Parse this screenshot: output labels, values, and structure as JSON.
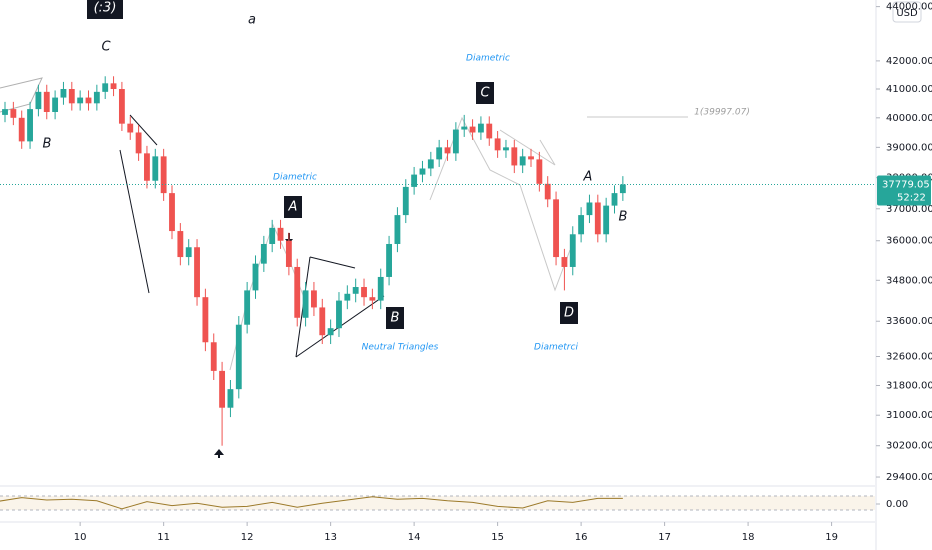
{
  "chart_data": {
    "type": "candlestick",
    "log_scale": true,
    "up_color": "#26a69a",
    "down_color": "#ef5350",
    "x": [
      9.1,
      9.2,
      9.3,
      9.4,
      9.5,
      9.6,
      9.7,
      9.8,
      9.9,
      10.0,
      10.1,
      10.2,
      10.3,
      10.4,
      10.5,
      10.6,
      10.7,
      10.8,
      10.9,
      11.0,
      11.1,
      11.2,
      11.3,
      11.4,
      11.5,
      11.6,
      11.7,
      11.8,
      11.9,
      12.0,
      12.1,
      12.2,
      12.3,
      12.4,
      12.5,
      12.6,
      12.7,
      12.8,
      12.9,
      13.0,
      13.1,
      13.2,
      13.3,
      13.4,
      13.5,
      13.6,
      13.7,
      13.8,
      13.9,
      14.0,
      14.1,
      14.2,
      14.3,
      14.4,
      14.5,
      14.6,
      14.7,
      14.8,
      14.9,
      15.0,
      15.1,
      15.2,
      15.3,
      15.4,
      15.5,
      15.6,
      15.7,
      15.8,
      15.9,
      16.0,
      16.1,
      16.2,
      16.3,
      16.4,
      16.5
    ],
    "open": [
      40100,
      40300,
      40000,
      39200,
      40300,
      40900,
      40200,
      40700,
      41000,
      40500,
      40700,
      40500,
      40900,
      41200,
      41000,
      39800,
      39500,
      38800,
      37900,
      38700,
      37500,
      36300,
      35500,
      35800,
      34300,
      33000,
      32200,
      31200,
      31700,
      33500,
      34500,
      35300,
      35900,
      36400,
      36000,
      35200,
      33700,
      34500,
      34000,
      33200,
      33400,
      34200,
      34400,
      34600,
      34300,
      34200,
      34900,
      35900,
      36800,
      37700,
      38100,
      38300,
      38600,
      39000,
      38800,
      39600,
      39700,
      39500,
      39800,
      39300,
      38900,
      39000,
      38400,
      38700,
      38600,
      37800,
      37300,
      35500,
      35200,
      36200,
      36800,
      37200,
      36200,
      37100,
      37500
    ],
    "high": [
      40550,
      40550,
      40250,
      40550,
      41150,
      41150,
      40950,
      41250,
      41250,
      40950,
      40950,
      41150,
      41450,
      41450,
      41250,
      40050,
      39750,
      39050,
      38950,
      38950,
      37750,
      36550,
      36050,
      36050,
      34550,
      33250,
      32450,
      31950,
      33750,
      34750,
      35550,
      36150,
      36650,
      36650,
      36250,
      35450,
      34750,
      34750,
      34250,
      33650,
      34450,
      34650,
      34850,
      34850,
      34550,
      35150,
      36150,
      37050,
      37950,
      38350,
      38550,
      38850,
      39250,
      39250,
      39850,
      40100,
      39950,
      40050,
      40050,
      39550,
      39250,
      39250,
      38950,
      38950,
      38850,
      38050,
      37550,
      35750,
      36450,
      37050,
      37450,
      37450,
      37350,
      37750,
      38050
    ],
    "low": [
      39850,
      39750,
      38950,
      38950,
      40050,
      39950,
      39950,
      40450,
      40250,
      40250,
      40250,
      40250,
      40650,
      40750,
      39550,
      39250,
      38550,
      37650,
      37650,
      37250,
      36050,
      35250,
      35250,
      34050,
      32750,
      31950,
      30200,
      30950,
      31450,
      33250,
      34250,
      35050,
      35650,
      35750,
      34950,
      33450,
      33450,
      33750,
      32950,
      32950,
      33150,
      33950,
      34150,
      34050,
      33950,
      33950,
      34650,
      35650,
      36550,
      37450,
      37850,
      38050,
      38350,
      38550,
      38550,
      39350,
      39250,
      39250,
      39050,
      38650,
      38650,
      38150,
      38150,
      38350,
      37550,
      37050,
      35250,
      34500,
      34950,
      35950,
      36550,
      35950,
      35950,
      36850,
      37250
    ],
    "close": [
      40300,
      40000,
      39200,
      40300,
      40900,
      40200,
      40700,
      41000,
      40500,
      40700,
      40500,
      40900,
      41200,
      41000,
      39800,
      39500,
      38800,
      37900,
      38700,
      37500,
      36300,
      35500,
      35800,
      34300,
      33000,
      32200,
      31200,
      31700,
      33500,
      34500,
      35300,
      35900,
      36400,
      36000,
      35200,
      33700,
      34500,
      34000,
      33200,
      33400,
      34200,
      34400,
      34600,
      34300,
      34200,
      34900,
      35900,
      36800,
      37700,
      38100,
      38300,
      38600,
      39000,
      38800,
      39600,
      39700,
      39500,
      39800,
      39300,
      38900,
      39000,
      38400,
      38700,
      38600,
      37800,
      37300,
      35500,
      35200,
      36200,
      36800,
      37200,
      36200,
      37100,
      37500,
      37779.05
    ],
    "xlim": [
      9.04,
      19.52
    ],
    "xticks": [
      10,
      11,
      12,
      13,
      14,
      15,
      16,
      17,
      18,
      19
    ],
    "ylim": [
      29200,
      44250
    ],
    "yticks": [
      {
        "value": 44000,
        "label": "44000.00"
      },
      {
        "value": 42000,
        "label": "42000.00"
      },
      {
        "value": 41000,
        "label": "41000.00"
      },
      {
        "value": 40000,
        "label": "40000.00"
      },
      {
        "value": 39000,
        "label": "39000.00"
      },
      {
        "value": 38000,
        "label": "38000.00"
      },
      {
        "value": 37000,
        "label": "37000.00"
      },
      {
        "value": 36000,
        "label": "36000.00"
      },
      {
        "value": 34800,
        "label": "34800.00"
      },
      {
        "value": 33600,
        "label": "33600.00"
      },
      {
        "value": 32600,
        "label": "32600.00"
      },
      {
        "value": 31800,
        "label": "31800.00"
      },
      {
        "value": 31000,
        "label": "31000.00"
      },
      {
        "value": 30200,
        "label": "30200.00"
      },
      {
        "value": 29400,
        "label": "29400.00"
      }
    ],
    "last_price": 37779.05,
    "countdown": "52:22",
    "currency": "USD",
    "annotations": [
      {
        "text": "(:3)",
        "boxed": true
      },
      {
        "text": "a",
        "boxed": false
      },
      {
        "text": "C",
        "boxed": false
      },
      {
        "text": "B",
        "boxed": false
      },
      {
        "text": "Diametric",
        "boxed": false,
        "color": "#2196f3"
      },
      {
        "text": "C",
        "boxed": true
      },
      {
        "text": "1(39997.07)",
        "boxed": false,
        "color": "#9e9e9e"
      },
      {
        "text": "Diametric",
        "boxed": false,
        "color": "#2196f3"
      },
      {
        "text": "A",
        "boxed": false
      },
      {
        "text": "A",
        "boxed": true
      },
      {
        "text": "B",
        "boxed": false
      },
      {
        "text": "B",
        "boxed": true
      },
      {
        "text": "D",
        "boxed": true
      },
      {
        "text": "Neutral Triangles",
        "boxed": false,
        "color": "#2196f3"
      },
      {
        "text": "Diametrci",
        "boxed": false,
        "color": "#2196f3"
      }
    ],
    "oscillator": {
      "type": "line",
      "color": "#9c7a2a",
      "x": [
        9.0,
        9.3,
        9.6,
        9.9,
        10.2,
        10.5,
        10.8,
        11.1,
        11.4,
        11.7,
        12.0,
        12.3,
        12.6,
        12.9,
        13.2,
        13.5,
        13.8,
        14.1,
        14.4,
        14.7,
        15.0,
        15.3,
        15.6,
        15.9,
        16.2,
        16.5
      ],
      "values": [
        0.3,
        0.8,
        0.5,
        0.6,
        0.4,
        -0.6,
        0.3,
        -0.2,
        0.1,
        -0.4,
        -0.3,
        0.2,
        -0.4,
        0.1,
        0.5,
        0.9,
        0.6,
        0.7,
        0.4,
        0.2,
        -0.3,
        -0.5,
        0.4,
        0.2,
        0.7,
        0.7
      ],
      "ylim": [
        -2,
        2
      ],
      "yticks": [
        {
          "value": 0,
          "label": "0.00"
        }
      ]
    }
  }
}
